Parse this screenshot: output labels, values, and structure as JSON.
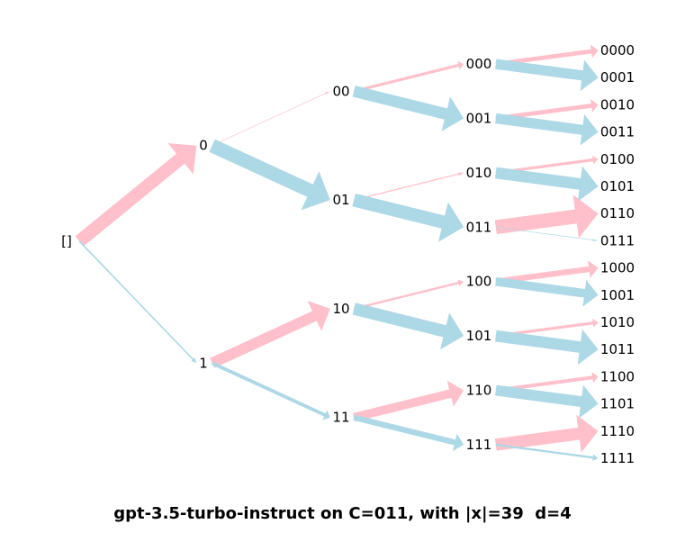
{
  "caption": "gpt-3.5-turbo-instruct on C=011, with |x|=39  d=4",
  "colors": {
    "zero_branch": "#ffc0cb",
    "one_branch": "#add8e6",
    "label": "#000000"
  },
  "tree": {
    "nodes": [
      {
        "id": "[]",
        "label": "[]"
      },
      {
        "id": "0",
        "label": "0"
      },
      {
        "id": "1",
        "label": "1"
      },
      {
        "id": "00",
        "label": "00"
      },
      {
        "id": "01",
        "label": "01"
      },
      {
        "id": "10",
        "label": "10"
      },
      {
        "id": "11",
        "label": "11"
      },
      {
        "id": "000",
        "label": "000"
      },
      {
        "id": "001",
        "label": "001"
      },
      {
        "id": "010",
        "label": "010"
      },
      {
        "id": "011",
        "label": "011"
      },
      {
        "id": "100",
        "label": "100"
      },
      {
        "id": "101",
        "label": "101"
      },
      {
        "id": "110",
        "label": "110"
      },
      {
        "id": "111",
        "label": "111"
      },
      {
        "id": "0000",
        "label": "0000"
      },
      {
        "id": "0001",
        "label": "0001"
      },
      {
        "id": "0010",
        "label": "0010"
      },
      {
        "id": "0011",
        "label": "0011"
      },
      {
        "id": "0100",
        "label": "0100"
      },
      {
        "id": "0101",
        "label": "0101"
      },
      {
        "id": "0110",
        "label": "0110"
      },
      {
        "id": "0111",
        "label": "0111"
      },
      {
        "id": "1000",
        "label": "1000"
      },
      {
        "id": "1001",
        "label": "1001"
      },
      {
        "id": "1010",
        "label": "1010"
      },
      {
        "id": "1011",
        "label": "1011"
      },
      {
        "id": "1100",
        "label": "1100"
      },
      {
        "id": "1101",
        "label": "1101"
      },
      {
        "id": "1110",
        "label": "1110"
      },
      {
        "id": "1111",
        "label": "1111"
      }
    ],
    "edges": [
      {
        "from": "[]",
        "to": "0",
        "weight": 0.9
      },
      {
        "from": "[]",
        "to": "1",
        "weight": 0.1
      },
      {
        "from": "0",
        "to": "00",
        "weight": 0.04
      },
      {
        "from": "0",
        "to": "01",
        "weight": 0.96
      },
      {
        "from": "1",
        "to": "10",
        "weight": 0.75
      },
      {
        "from": "1",
        "to": "11",
        "weight": 0.25
      },
      {
        "from": "00",
        "to": "000",
        "weight": 0.2
      },
      {
        "from": "00",
        "to": "001",
        "weight": 0.8
      },
      {
        "from": "01",
        "to": "010",
        "weight": 0.08
      },
      {
        "from": "01",
        "to": "011",
        "weight": 0.92
      },
      {
        "from": "10",
        "to": "100",
        "weight": 0.15
      },
      {
        "from": "10",
        "to": "101",
        "weight": 0.85
      },
      {
        "from": "11",
        "to": "110",
        "weight": 0.6
      },
      {
        "from": "11",
        "to": "111",
        "weight": 0.4
      },
      {
        "from": "000",
        "to": "0000",
        "weight": 0.3
      },
      {
        "from": "000",
        "to": "0001",
        "weight": 0.7
      },
      {
        "from": "001",
        "to": "0010",
        "weight": 0.3
      },
      {
        "from": "001",
        "to": "0011",
        "weight": 0.7
      },
      {
        "from": "010",
        "to": "0100",
        "weight": 0.2
      },
      {
        "from": "010",
        "to": "0101",
        "weight": 0.8
      },
      {
        "from": "011",
        "to": "0110",
        "weight": 0.98
      },
      {
        "from": "011",
        "to": "0111",
        "weight": 0.02
      },
      {
        "from": "100",
        "to": "1000",
        "weight": 0.4
      },
      {
        "from": "100",
        "to": "1001",
        "weight": 0.6
      },
      {
        "from": "101",
        "to": "1010",
        "weight": 0.2
      },
      {
        "from": "101",
        "to": "1011",
        "weight": 0.8
      },
      {
        "from": "110",
        "to": "1100",
        "weight": 0.25
      },
      {
        "from": "110",
        "to": "1101",
        "weight": 0.75
      },
      {
        "from": "111",
        "to": "1110",
        "weight": 0.85
      },
      {
        "from": "111",
        "to": "1111",
        "weight": 0.15
      }
    ]
  }
}
